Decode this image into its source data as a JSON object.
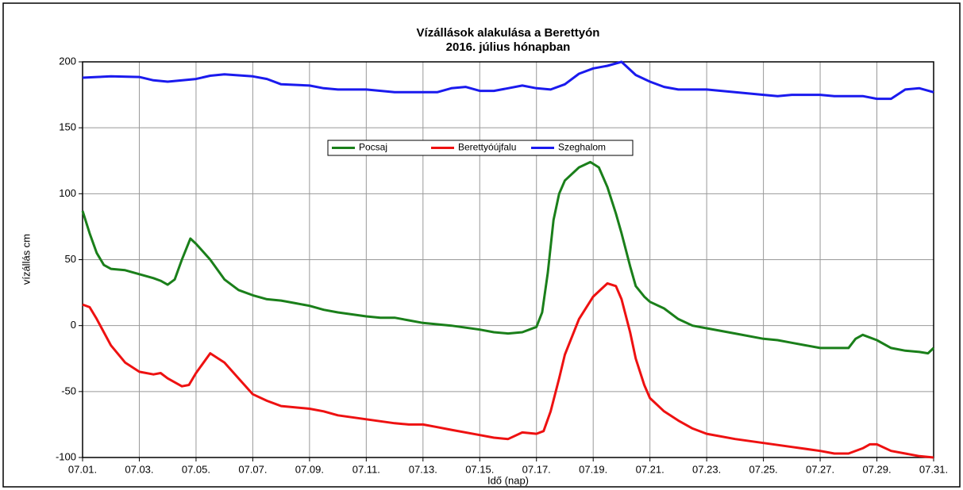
{
  "chart_data": {
    "type": "line",
    "title": "Vízállások alakulása a Berettyón",
    "subtitle": "2016. július hónapban",
    "x_label": "Idő (nap)",
    "y_label": "vízállás cm",
    "xlim": [
      1,
      31
    ],
    "xticks": [
      {
        "value": 1,
        "label": "07.01."
      },
      {
        "value": 3,
        "label": "07.03."
      },
      {
        "value": 5,
        "label": "07.05."
      },
      {
        "value": 7,
        "label": "07.07."
      },
      {
        "value": 9,
        "label": "07.09."
      },
      {
        "value": 11,
        "label": "07.11."
      },
      {
        "value": 13,
        "label": "07.13."
      },
      {
        "value": 15,
        "label": "07.15."
      },
      {
        "value": 17,
        "label": "07.17."
      },
      {
        "value": 19,
        "label": "07.19."
      },
      {
        "value": 21,
        "label": "07.21."
      },
      {
        "value": 23,
        "label": "07.23."
      },
      {
        "value": 25,
        "label": "07.25."
      },
      {
        "value": 27,
        "label": "07.27."
      },
      {
        "value": 29,
        "label": "07.29."
      },
      {
        "value": 31,
        "label": "07.31."
      }
    ],
    "ylim": [
      -100,
      200
    ],
    "yticks": [
      -100,
      -50,
      0,
      50,
      100,
      150,
      200
    ],
    "grid": true,
    "series": [
      {
        "name": "Pocsaj",
        "color": "#1a7f1a",
        "x": [
          1,
          1.25,
          1.5,
          1.75,
          2,
          2.5,
          3,
          3.5,
          3.75,
          4,
          4.25,
          4.5,
          4.8,
          5,
          5.5,
          6,
          6.5,
          7,
          7.5,
          8,
          8.5,
          9,
          9.5,
          10,
          11,
          11.5,
          12,
          12.5,
          13,
          14,
          15,
          15.5,
          16,
          16.5,
          16.75,
          17,
          17.2,
          17.4,
          17.6,
          17.8,
          18,
          18.5,
          18.9,
          19.2,
          19.5,
          19.8,
          20,
          20.3,
          20.5,
          20.8,
          21,
          21.5,
          22,
          22.5,
          23,
          24,
          25,
          25.5,
          26,
          26.5,
          27,
          28,
          28.25,
          28.5,
          29,
          29.5,
          30,
          30.5,
          30.8,
          31
        ],
        "values": [
          87,
          70,
          55,
          46,
          43,
          42,
          39,
          36,
          34,
          31,
          35,
          50,
          66,
          62,
          50,
          35,
          27,
          23,
          20,
          19,
          17,
          15,
          12,
          10,
          7,
          6,
          6,
          4,
          2,
          0,
          -3,
          -5,
          -6,
          -5,
          -3,
          -1,
          10,
          40,
          80,
          100,
          110,
          120,
          124,
          120,
          105,
          85,
          70,
          45,
          30,
          22,
          18,
          13,
          5,
          0,
          -2,
          -6,
          -10,
          -11,
          -13,
          -15,
          -17,
          -17,
          -10,
          -7,
          -11,
          -17,
          -19,
          -20,
          -21,
          -17
        ]
      },
      {
        "name": "Berettyóújfalu",
        "color": "#ee1111",
        "x": [
          1,
          1.25,
          1.5,
          2,
          2.5,
          3,
          3.5,
          3.75,
          4,
          4.5,
          4.75,
          5,
          5.5,
          6,
          6.5,
          7,
          7.5,
          8,
          9,
          9.5,
          10,
          11,
          12,
          12.5,
          13,
          13.5,
          14,
          15,
          15.5,
          16,
          16.5,
          17,
          17.25,
          17.5,
          17.8,
          18,
          18.5,
          19,
          19.5,
          19.8,
          20,
          20.3,
          20.5,
          20.8,
          21,
          21.5,
          22,
          22.5,
          23,
          24,
          25,
          26,
          27,
          27.5,
          28,
          28.5,
          28.75,
          29,
          29.5,
          30,
          30.5,
          31
        ],
        "values": [
          16,
          14,
          5,
          -15,
          -28,
          -35,
          -37,
          -36,
          -40,
          -46,
          -45,
          -36,
          -21,
          -28,
          -40,
          -52,
          -57,
          -61,
          -63,
          -65,
          -68,
          -71,
          -74,
          -75,
          -75,
          -77,
          -79,
          -83,
          -85,
          -86,
          -81,
          -82,
          -80,
          -65,
          -40,
          -22,
          5,
          22,
          32,
          30,
          20,
          -5,
          -25,
          -45,
          -55,
          -65,
          -72,
          -78,
          -82,
          -86,
          -89,
          -92,
          -95,
          -97,
          -97,
          -93,
          -90,
          -90,
          -95,
          -97,
          -99,
          -100
        ]
      },
      {
        "name": "Szeghalom",
        "color": "#1a1aee",
        "x": [
          1,
          1.5,
          2,
          3,
          3.5,
          4,
          5,
          5.5,
          6,
          7,
          7.5,
          8,
          9,
          9.5,
          10,
          11,
          12,
          13,
          13.5,
          14,
          14.5,
          15,
          15.5,
          16,
          16.5,
          17,
          17.5,
          18,
          18.5,
          19,
          19.5,
          20,
          20.5,
          21,
          21.5,
          22,
          23,
          24,
          25,
          25.5,
          26,
          27,
          27.5,
          28.5,
          29,
          29.5,
          30,
          30.5,
          31
        ],
        "values": [
          188,
          188.5,
          189,
          188.5,
          186,
          185,
          187,
          189.5,
          190.5,
          189,
          187,
          183,
          182,
          180,
          179,
          179,
          177,
          177,
          177,
          180,
          181,
          178,
          178,
          180,
          182,
          180,
          179,
          183,
          191,
          195,
          197,
          200,
          190,
          185,
          181,
          179,
          179,
          177,
          175,
          174,
          175,
          175,
          174,
          174,
          172,
          172,
          179,
          180,
          177
        ]
      }
    ]
  }
}
